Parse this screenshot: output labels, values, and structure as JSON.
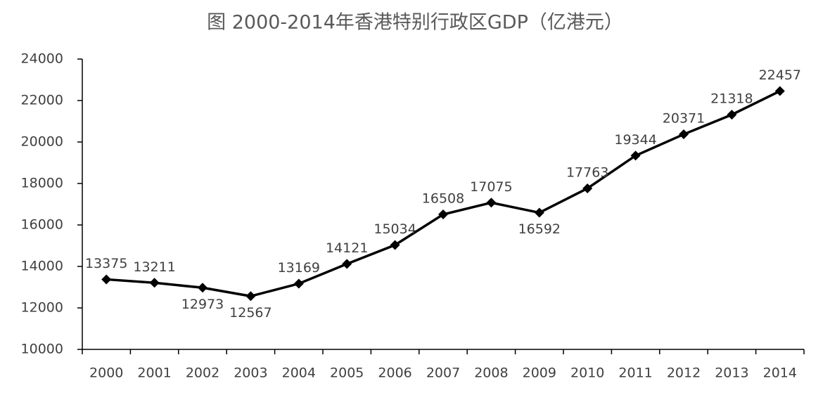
{
  "chart_data": {
    "type": "line",
    "title": "图  2000-2014年香港特别行政区GDP（亿港元）",
    "categories": [
      "2000",
      "2001",
      "2002",
      "2003",
      "2004",
      "2005",
      "2006",
      "2007",
      "2008",
      "2009",
      "2010",
      "2011",
      "2012",
      "2013",
      "2014"
    ],
    "values": [
      13375,
      13211,
      12973,
      12567,
      13169,
      14121,
      15034,
      16508,
      17075,
      16592,
      17763,
      19344,
      20371,
      21318,
      22457
    ],
    "color": "#000000",
    "ylim": [
      10000,
      24000
    ],
    "yticks": [
      10000,
      12000,
      14000,
      16000,
      18000,
      20000,
      22000,
      24000
    ],
    "grid": false
  }
}
